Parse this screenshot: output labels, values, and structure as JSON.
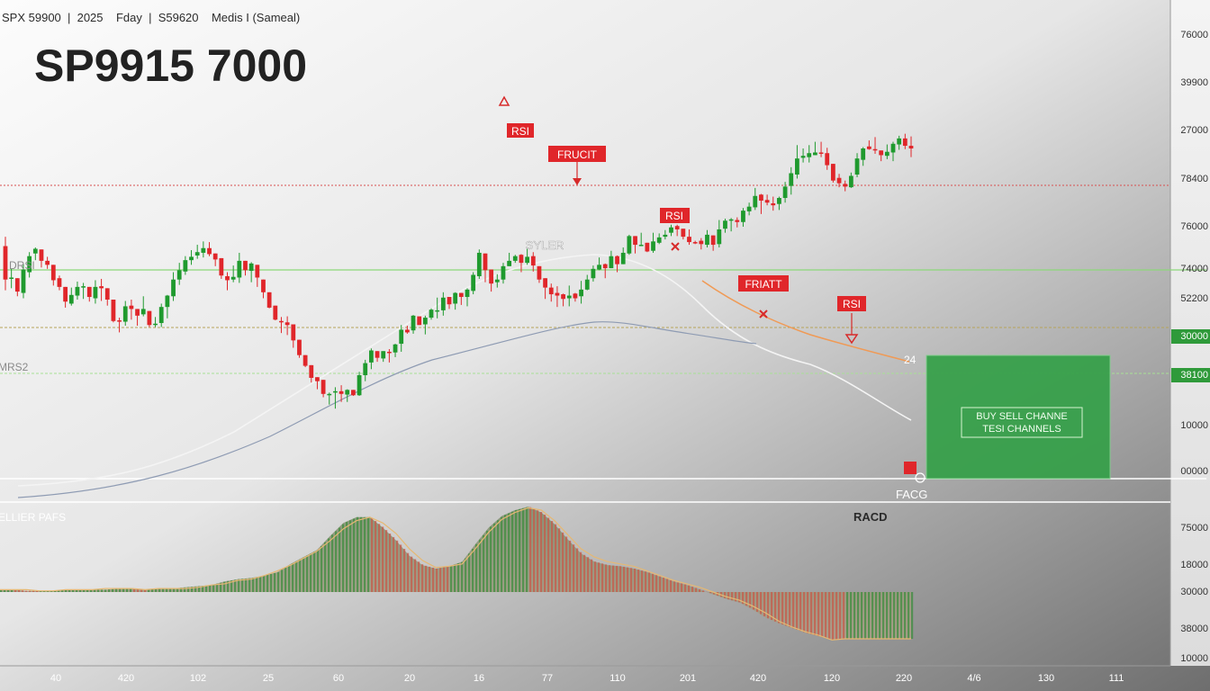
{
  "header": {
    "info_line": "SPX 59900  |  2025    Fday  |  S59620    Medis I (Sameal)",
    "big_title": "SP9915 7000"
  },
  "colors": {
    "up": "#1f9a2e",
    "down": "#e0262a",
    "bg_light": "#fafafa",
    "bg_dark": "#8a8a8a",
    "level_red": "#d85050",
    "level_green": "#8cd87a",
    "level_olive": "#b7a45a",
    "ma_white": "#f2f2f2",
    "ma_blue": "#8e9bb3",
    "trend_orange": "#f09a55",
    "box_green": "#34a048"
  },
  "chart_data": {
    "type": "candlestick",
    "price_axis_labels": [
      "76000",
      "39900",
      "27000",
      "78400",
      "76000",
      "74000",
      "52200",
      "30000",
      "38100",
      "10000",
      "00000"
    ],
    "price_axis_highlight": [
      "30000",
      "38100"
    ],
    "macd_axis_labels": [
      "75000",
      "18000",
      "30000",
      "38000",
      "10000"
    ],
    "x_axis_labels": [
      "40",
      "420",
      "102",
      "25",
      "60",
      "20",
      "16",
      "77",
      "110",
      "201",
      "420",
      "120",
      "220",
      "4/6",
      "130",
      "111"
    ],
    "left_labels": {
      "drsi": "DRSI",
      "mrs": "MRS2",
      "seller": "ELLIER PAFS"
    },
    "annotations": {
      "rsi_top": "RSI",
      "fruct": "FRUCIT",
      "syler": "SYLER",
      "rsi_mid": "RSI",
      "friatt": "FRIATT",
      "rsi_right": "RSI",
      "label_24": "24",
      "facg": "FACG",
      "racd": "RACD"
    },
    "box": {
      "line1": "BUY SELL CHANNE",
      "line2": "TESI CHANNELS"
    },
    "candles": [
      [
        380,
        330,
        394,
        314
      ],
      [
        331,
        333,
        346,
        317
      ],
      [
        332,
        312,
        320,
        305
      ],
      [
        310,
        345,
        353,
        302
      ],
      [
        341,
        365,
        371,
        333
      ],
      [
        369,
        376,
        378,
        359
      ],
      [
        375,
        358,
        368,
        348
      ],
      [
        358,
        352,
        364,
        346
      ],
      [
        352,
        329,
        340,
        321
      ],
      [
        332,
        319,
        336,
        314
      ],
      [
        319,
        297,
        304,
        288
      ],
      [
        294,
        307,
        318,
        291
      ],
      [
        306,
        319,
        327,
        300
      ],
      [
        319,
        320,
        325,
        301
      ],
      [
        319,
        304,
        306,
        297
      ],
      [
        302,
        319,
        329,
        294
      ],
      [
        320,
        317,
        331,
        298
      ],
      [
        317,
        300,
        306,
        291
      ],
      [
        300,
        268,
        271,
        266
      ],
      [
        269,
        268,
        273,
        251
      ],
      [
        267,
        290,
        298,
        261
      ],
      [
        291,
        286,
        300,
        270
      ],
      [
        286,
        276,
        282,
        261
      ],
      [
        278,
        286,
        305,
        275
      ],
      [
        283,
        262,
        263,
        259
      ],
      [
        262,
        264,
        274,
        259
      ],
      [
        265,
        289,
        294,
        259
      ],
      [
        289,
        306,
        307,
        272
      ],
      [
        305,
        330,
        341,
        298
      ],
      [
        330,
        344,
        355,
        322
      ],
      [
        342,
        359,
        365,
        337
      ],
      [
        359,
        364,
        374,
        352
      ],
      [
        366,
        371,
        382,
        361
      ],
      [
        370,
        377,
        387,
        363
      ],
      [
        377,
        368,
        386,
        365
      ],
      [
        369,
        360,
        366,
        350
      ],
      [
        362,
        336,
        348,
        331
      ],
      [
        335,
        329,
        341,
        314
      ],
      [
        330,
        334,
        351,
        326
      ],
      [
        333,
        358,
        370,
        325
      ],
      [
        358,
        344,
        351,
        336
      ],
      [
        343,
        354,
        356,
        326
      ],
      [
        352,
        333,
        344,
        319
      ],
      [
        330,
        311,
        324,
        302
      ],
      [
        311,
        288,
        300,
        287
      ],
      [
        291,
        270,
        274,
        269
      ],
      [
        268,
        267,
        274,
        250
      ],
      [
        266,
        262,
        275,
        247
      ],
      [
        263,
        239,
        245,
        228
      ],
      [
        240,
        217,
        226,
        213
      ],
      [
        217,
        201,
        211,
        199
      ],
      [
        202,
        183,
        192,
        176
      ],
      [
        184,
        178,
        184,
        166
      ],
      [
        180,
        159,
        166,
        154
      ],
      [
        158,
        159,
        161,
        143
      ],
      [
        161,
        163,
        169,
        137
      ],
      [
        163,
        159,
        172,
        147
      ],
      [
        158,
        165,
        166,
        147
      ],
      [
        165,
        157,
        160,
        156
      ],
      [
        157,
        187,
        192,
        156
      ],
      [
        187,
        205,
        210,
        178
      ],
      [
        206,
        224,
        227,
        196
      ],
      [
        223,
        213,
        220,
        207
      ],
      [
        212,
        223,
        223,
        207
      ],
      [
        222,
        220,
        226,
        206
      ],
      [
        221,
        233,
        234,
        214
      ],
      [
        234,
        255,
        262,
        222
      ],
      [
        255,
        251,
        261,
        249
      ],
      [
        254,
        276,
        277,
        249
      ],
      [
        275,
        262,
        265,
        263
      ],
      [
        263,
        273,
        276,
        248
      ],
      [
        273,
        285,
        287,
        270
      ],
      [
        284,
        284,
        303,
        272
      ],
      [
        284,
        303,
        311,
        276
      ],
      [
        304,
        293,
        301,
        286
      ],
      [
        294,
        310,
        311,
        285
      ],
      [
        310,
        304,
        305,
        292
      ],
      [
        304,
        315,
        317,
        290
      ],
      [
        313,
        337,
        341,
        308
      ],
      [
        335,
        370,
        375,
        331
      ],
      [
        369,
        344,
        345,
        326
      ],
      [
        345,
        324,
        328,
        312
      ],
      [
        326,
        330,
        338,
        318
      ],
      [
        330,
        350,
        355,
        324
      ],
      [
        350,
        358,
        370,
        355
      ],
      [
        358,
        365,
        367,
        355
      ],
      [
        367,
        355,
        368,
        341
      ],
      [
        355,
        364,
        377,
        352
      ],
      [
        365,
        351,
        371,
        342
      ],
      [
        350,
        330,
        338,
        325
      ],
      [
        332,
        318,
        322,
        301
      ],
      [
        318,
        308,
        324,
        297
      ],
      [
        310,
        306,
        320,
        289
      ],
      [
        308,
        301,
        309,
        290
      ],
      [
        302,
        306,
        321,
        290
      ],
      [
        309,
        302,
        310,
        297
      ],
      [
        305,
        315,
        328,
        294
      ],
      [
        315,
        330,
        337,
        314
      ],
      [
        332,
        346,
        351,
        327
      ],
      [
        345,
        352,
        363,
        344
      ],
      [
        353,
        347,
        354,
        332
      ],
      [
        347,
        365,
        373,
        347
      ],
      [
        365,
        353,
        366,
        341
      ],
      [
        353,
        370,
        378,
        363
      ],
      [
        369,
        395,
        397,
        367
      ],
      [
        395,
        382,
        388,
        369
      ],
      [
        382,
        382,
        400,
        380
      ],
      [
        385,
        372,
        383,
        371
      ],
      [
        373,
        387,
        400,
        370
      ],
      [
        385,
        393,
        399,
        383
      ],
      [
        394,
        397,
        404,
        390
      ],
      [
        400,
        408,
        412,
        395
      ],
      [
        410,
        405,
        412,
        395
      ],
      [
        406,
        394,
        399,
        390
      ],
      [
        394,
        386,
        405,
        382
      ],
      [
        386,
        384,
        388,
        383
      ],
      [
        388,
        383,
        392,
        375
      ],
      [
        382,
        397,
        404,
        378
      ],
      [
        396,
        382,
        382,
        373
      ],
      [
        383,
        405,
        419,
        378
      ],
      [
        406,
        418,
        421,
        400
      ],
      [
        418,
        420,
        422,
        402
      ],
      [
        419,
        416,
        423,
        408
      ],
      [
        416,
        433,
        437,
        409
      ],
      [
        432,
        439,
        445,
        426
      ],
      [
        438,
        455,
        467,
        434
      ],
      [
        457,
        448,
        458,
        428
      ],
      [
        449,
        445,
        457,
        441
      ],
      [
        444,
        441,
        454,
        433
      ],
      [
        443,
        452,
        454,
        434
      ],
      [
        452,
        469,
        476,
        445
      ],
      [
        470,
        489,
        498,
        457
      ],
      [
        487,
        511,
        531,
        481
      ],
      [
        512,
        515,
        526,
        505
      ],
      [
        513,
        519,
        531,
        505
      ],
      [
        516,
        520,
        536,
        518
      ],
      [
        520,
        519,
        536,
        513
      ],
      [
        519,
        501,
        527,
        494
      ],
      [
        503,
        478,
        488,
        475
      ],
      [
        482,
        474,
        488,
        468
      ],
      [
        473,
        469,
        478,
        462
      ],
      [
        468,
        485,
        490,
        467
      ],
      [
        487,
        511,
        519,
        483
      ],
      [
        509,
        526,
        528,
        500
      ],
      [
        529,
        525,
        538,
        524
      ],
      [
        525,
        524,
        543,
        518
      ],
      [
        523,
        516,
        521,
        507
      ],
      [
        515,
        521,
        532,
        510
      ],
      [
        520,
        533,
        536,
        507
      ],
      [
        532,
        541,
        545,
        524
      ],
      [
        541,
        530,
        548,
        525
      ],
      [
        530,
        526,
        544,
        513
      ]
    ],
    "levels": [
      "red-dotted",
      "green",
      "olive",
      "green",
      "white"
    ],
    "macd": {
      "histogram": [
        2,
        2,
        1,
        1,
        1,
        2,
        2,
        2,
        2,
        3,
        3,
        2,
        3,
        3,
        4,
        5,
        6,
        9,
        11,
        12,
        14,
        17,
        24,
        30,
        36,
        48,
        59,
        64,
        64,
        55,
        44,
        31,
        23,
        20,
        22,
        26,
        41,
        55,
        65,
        70,
        73,
        68,
        58,
        45,
        33,
        26,
        23,
        22,
        20,
        17,
        13,
        9,
        6,
        2,
        -2,
        -6,
        -9,
        -15,
        -22,
        -27,
        -31,
        -35,
        -38,
        -41,
        -40,
        -40,
        -40,
        -40,
        -40,
        -40
      ],
      "signal": [
        2,
        2,
        2,
        1,
        1,
        2,
        2,
        2,
        3,
        3,
        3,
        2,
        3,
        3,
        3,
        4,
        6,
        7,
        10,
        11,
        14,
        18,
        23,
        29,
        35,
        44,
        54,
        61,
        64,
        59,
        50,
        37,
        27,
        21,
        22,
        24,
        37,
        51,
        62,
        68,
        72,
        70,
        61,
        49,
        37,
        30,
        26,
        24,
        22,
        18,
        14,
        10,
        7,
        4,
        0,
        -4,
        -7,
        -12,
        -18,
        -25,
        -30,
        -34,
        -37,
        -41,
        -40,
        -40,
        -40,
        -40,
        -40,
        -40
      ]
    }
  }
}
